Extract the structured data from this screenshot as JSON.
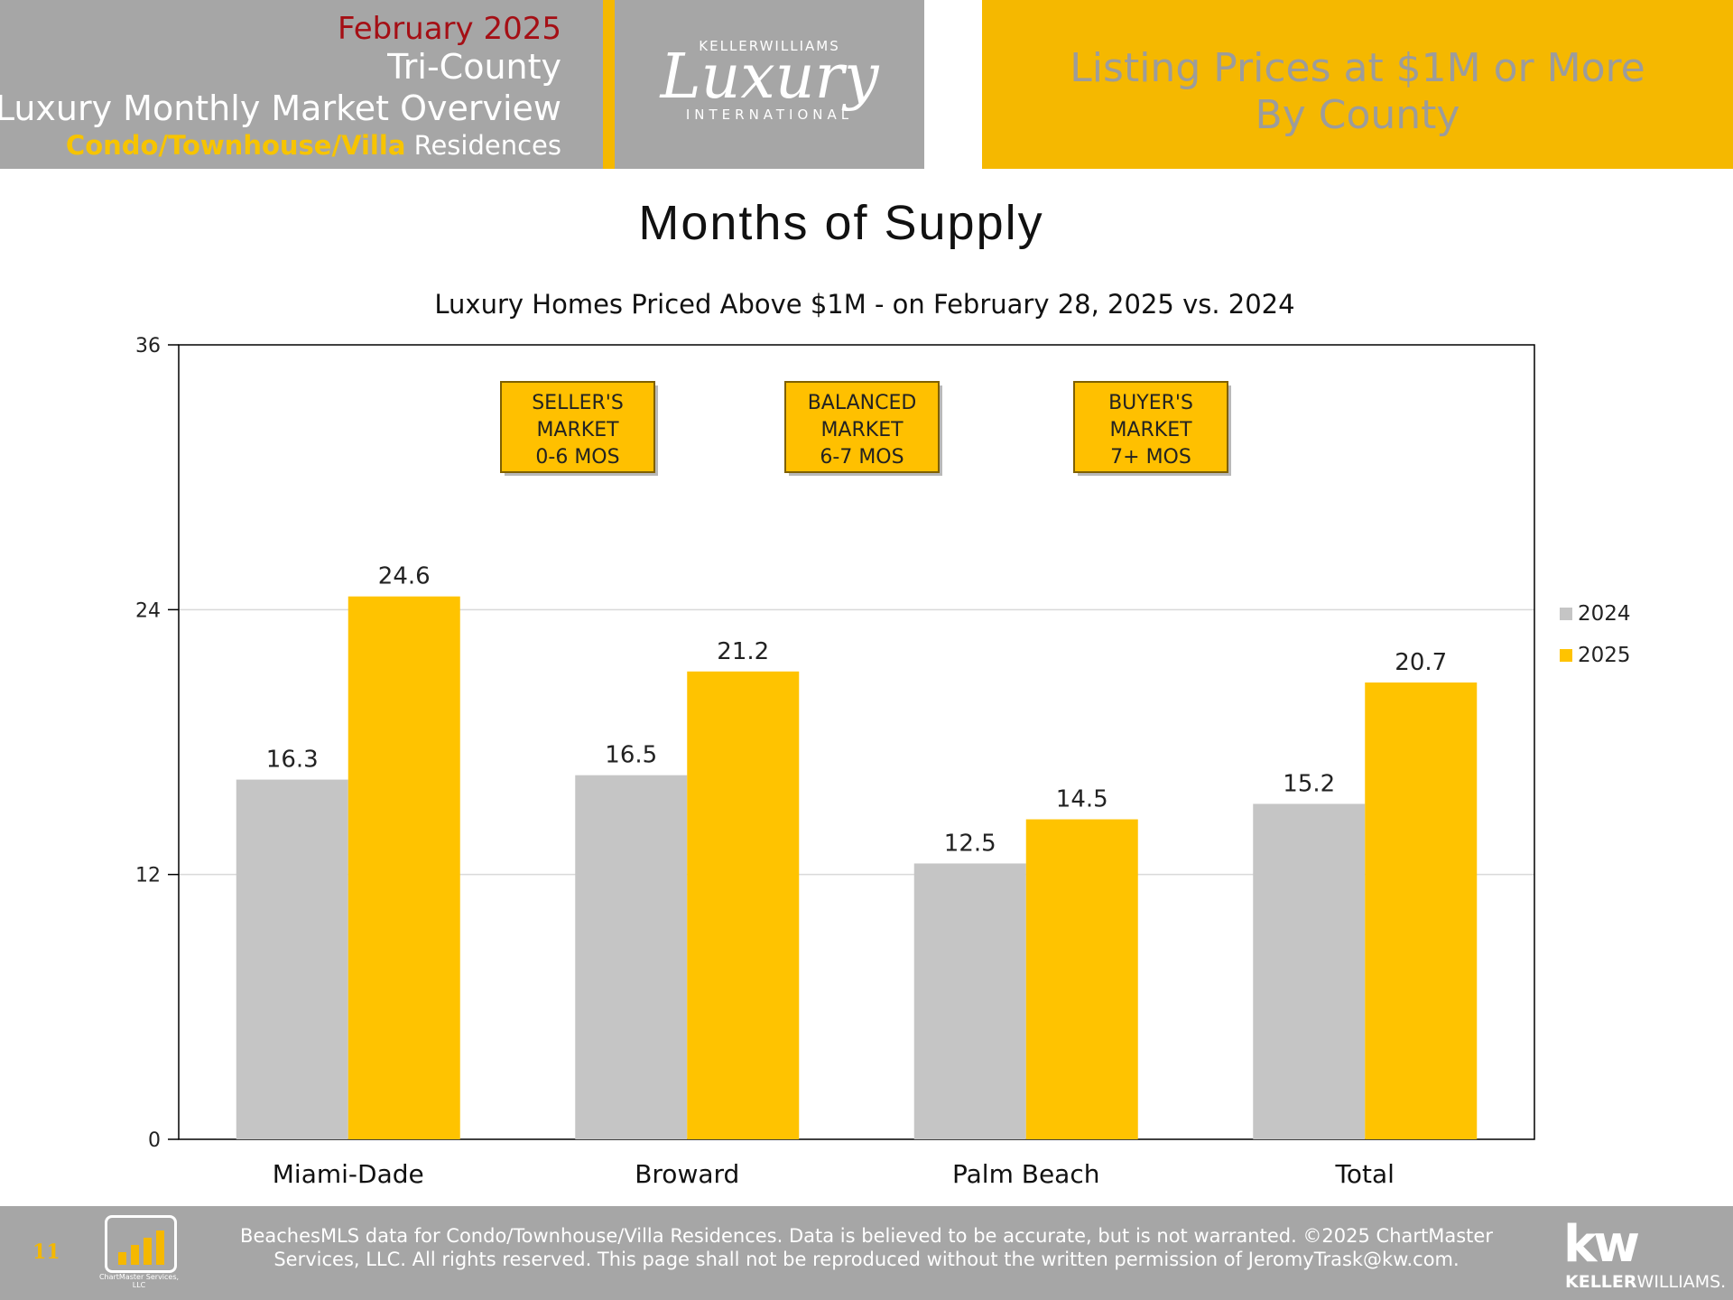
{
  "header": {
    "date": "February 2025",
    "region": "Tri-County",
    "title": "Luxury Monthly Market Overview",
    "subtitle_accent": "Condo/Townhouse/Villa",
    "subtitle_rest": " Residences",
    "logo_top": "KELLERWILLIAMS",
    "logo_script": "Luxury",
    "logo_bottom": "INTERNATIONAL",
    "panel_line1": "Listing Prices at $1M or More",
    "panel_line2": "By County"
  },
  "colors": {
    "gray_panel": "#a6a6a6",
    "accent_yellow": "#f5b800",
    "date_red": "#a50f15",
    "bar_2024": "#c5c5c5",
    "bar_2025": "#ffc300"
  },
  "chart_data": {
    "type": "bar",
    "title": "Months of Supply",
    "subtitle": "Luxury Homes Priced Above $1M - on February 28,  2025 vs. 2024",
    "categories": [
      "Miami-Dade",
      "Broward",
      "Palm Beach",
      "Total"
    ],
    "series": [
      {
        "name": "2024",
        "values": [
          16.3,
          16.5,
          12.5,
          15.2
        ]
      },
      {
        "name": "2025",
        "values": [
          24.6,
          21.2,
          14.5,
          20.7
        ]
      }
    ],
    "ylim": [
      0,
      36
    ],
    "yticks": [
      0,
      12,
      24,
      36
    ],
    "gridlines": true,
    "legend_position": "right",
    "annotations": [
      {
        "lines": [
          "SELLER'S",
          "MARKET",
          "0-6 MOS"
        ]
      },
      {
        "lines": [
          "BALANCED",
          "MARKET",
          "6-7 MOS"
        ]
      },
      {
        "lines": [
          "BUYER'S",
          "MARKET",
          "7+ MOS"
        ]
      }
    ]
  },
  "footer": {
    "page_number": "11",
    "chartmaster_logo_text": "ChartMaster Services, LLC",
    "disclaimer_line1": "BeachesMLS data for Condo/Townhouse/Villa Residences.  Data is believed to be accurate, but is not warranted.   ©2025  ChartMaster",
    "disclaimer_line2": "Services, LLC.  All rights reserved. This page shall not be reproduced without the written permission of JeromyTrask@kw.com.",
    "kw_mark": "kw",
    "kw_word_bold": "KELLER",
    "kw_word_rest": "WILLIAMS."
  }
}
